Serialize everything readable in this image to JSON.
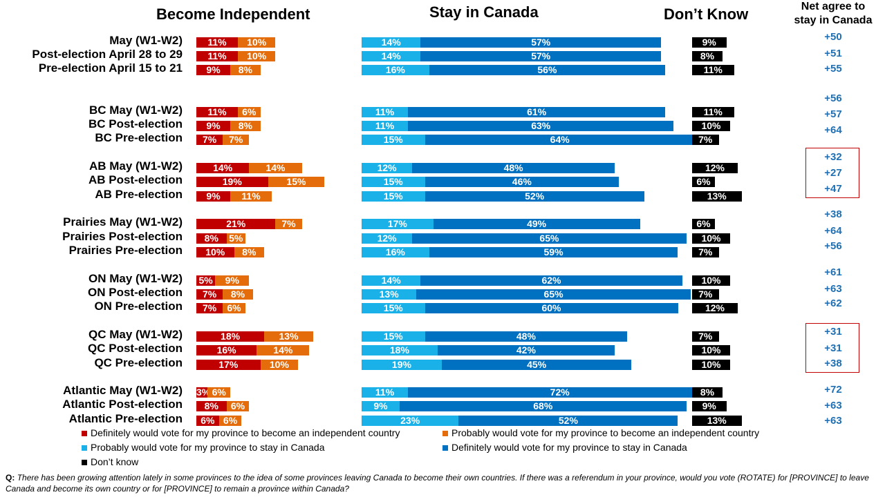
{
  "headers": {
    "become_independent": "Become Independent",
    "stay_in_canada": "Stay in Canada",
    "dont_know": "Don’t Know",
    "net_line1": "Net agree to",
    "net_line2": "stay in Canada"
  },
  "colors": {
    "definitely_leave": "#c00000",
    "probably_leave": "#e46c0a",
    "probably_stay": "#1ab0e8",
    "definitely_stay": "#0070c0",
    "dont_know": "#000000",
    "net": "#1f6fb2",
    "highlight": "#c00000"
  },
  "chart_data": {
    "type": "bar",
    "orientation": "horizontal-stacked",
    "categories": [
      "May (W1-W2)",
      "Post-election April 28 to 29",
      "Pre-election April 15 to 21",
      "BC May (W1-W2)",
      "BC Post-election",
      "BC Pre-election",
      "AB May (W1-W2)",
      "AB Post-election",
      "AB Pre-election",
      "Prairies May (W1-W2)",
      "Prairies Post-election",
      "Prairies Pre-election",
      "ON May (W1-W2)",
      "ON Post-election",
      "ON Pre-election",
      "QC May (W1-W2)",
      "QC Post-election",
      "QC Pre-election",
      "Atlantic May (W1-W2)",
      "Atlantic Post-election",
      "Atlantic Pre-election"
    ],
    "series": [
      {
        "name": "Definitely would vote for my province to become an independent country",
        "values": [
          11,
          11,
          9,
          11,
          9,
          7,
          14,
          19,
          9,
          21,
          8,
          10,
          5,
          7,
          7,
          18,
          16,
          17,
          3,
          8,
          6
        ]
      },
      {
        "name": "Probably would vote for my province to become an independent country",
        "values": [
          10,
          10,
          8,
          6,
          8,
          7,
          14,
          15,
          11,
          7,
          5,
          8,
          9,
          8,
          6,
          13,
          14,
          10,
          6,
          6,
          6
        ]
      },
      {
        "name": "Probably would vote for my province to stay in Canada",
        "values": [
          14,
          14,
          16,
          11,
          11,
          15,
          12,
          15,
          15,
          17,
          12,
          16,
          14,
          13,
          15,
          15,
          18,
          19,
          11,
          9,
          23
        ]
      },
      {
        "name": "Definitely would vote for my province to stay in Canada",
        "values": [
          57,
          57,
          56,
          61,
          63,
          64,
          48,
          46,
          52,
          49,
          65,
          59,
          62,
          65,
          60,
          48,
          42,
          45,
          72,
          68,
          52
        ]
      },
      {
        "name": "Don’t know",
        "values": [
          9,
          8,
          11,
          11,
          10,
          7,
          12,
          6,
          13,
          6,
          10,
          7,
          10,
          7,
          12,
          7,
          10,
          10,
          8,
          9,
          13
        ]
      }
    ],
    "net_agree_labels": [
      "+50",
      "+51",
      "+55",
      "+56",
      "+57",
      "+64",
      "+32",
      "+27",
      "+47",
      "+38",
      "+64",
      "+56",
      "+61",
      "+63",
      "+62",
      "+31",
      "+31",
      "+38",
      "+72",
      "+63",
      "+63"
    ],
    "highlighted_groups": [
      "AB",
      "QC"
    ],
    "value_suffix": "%"
  },
  "legend": [
    "Definitely would vote for my province to become an independent country",
    "Probably would vote for my province to become an independent country",
    "Probably would vote for my province to stay in Canada",
    "Definitely would vote for my province to stay in Canada",
    "Don’t know"
  ],
  "footnote": {
    "prefix": "Q:",
    "text": "There has been growing attention lately in some provinces to the idea of some provinces leaving Canada to become their own countries. If there was a referendum in your province, would you vote (ROTATE) for [PROVINCE] to leave Canada and become its own country or for [PROVINCE] to remain a province within Canada?"
  }
}
